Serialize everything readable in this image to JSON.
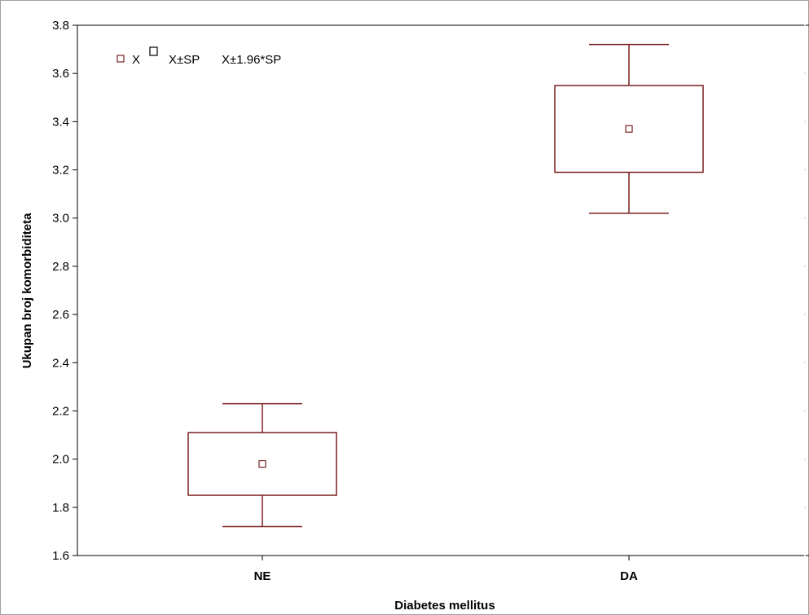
{
  "chart_data": {
    "type": "box",
    "xlabel": "Diabetes mellitus",
    "ylabel": "Ukupan broj komorbiditeta",
    "categories": [
      "NE",
      "DA"
    ],
    "ylim": [
      1.6,
      3.8
    ],
    "yticks": [
      "1.6",
      "1.8",
      "2.0",
      "2.2",
      "2.4",
      "2.6",
      "2.8",
      "3.0",
      "3.2",
      "3.4",
      "3.6",
      "3.8"
    ],
    "boxes": [
      {
        "category": "NE",
        "mean": 1.98,
        "sp_low": 1.85,
        "sp_high": 2.11,
        "ci_low": 1.72,
        "ci_high": 2.23
      },
      {
        "category": "DA",
        "mean": 3.37,
        "sp_low": 3.19,
        "sp_high": 3.55,
        "ci_low": 3.02,
        "ci_high": 3.72
      }
    ],
    "legend": {
      "mean": "X",
      "box": "X±SP",
      "whisker": "X±1.96*SP"
    },
    "colors": {
      "line": "#7a1f1f",
      "mean_marker": "#7a1f1f",
      "axis": "#000000"
    }
  }
}
